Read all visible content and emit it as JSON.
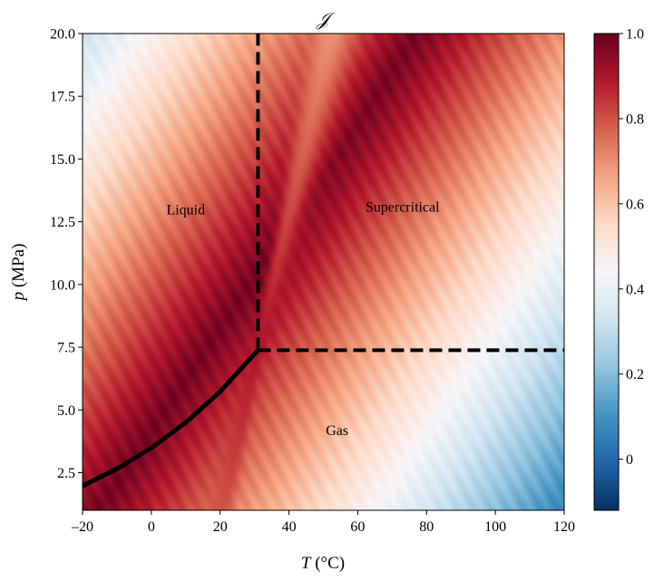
{
  "chart_data": {
    "type": "heatmap",
    "title": "𝒥",
    "xlabel": {
      "symbol": "T",
      "unit": " (°C)"
    },
    "ylabel": {
      "symbol": "p",
      "unit": " (MPa)"
    },
    "xlim": [
      -20,
      120
    ],
    "ylim": [
      1.0,
      20.0
    ],
    "x_ticks": [
      -20,
      0,
      20,
      40,
      60,
      80,
      100,
      120
    ],
    "x_tick_labels": [
      "–20",
      "0",
      "20",
      "40",
      "60",
      "80",
      "100",
      "120"
    ],
    "y_ticks": [
      2.5,
      5.0,
      7.5,
      10.0,
      12.5,
      15.0,
      17.5,
      20.0
    ],
    "y_tick_labels": [
      "2.5",
      "5.0",
      "7.5",
      "10.0",
      "12.5",
      "15.0",
      "17.5",
      "20.0"
    ],
    "colorbar": {
      "range": [
        -0.12,
        1.0
      ],
      "ticks": [
        0,
        0.2,
        0.4,
        0.6,
        0.8,
        1.0
      ],
      "tick_labels": [
        "0",
        "0.2",
        "0.4",
        "0.6",
        "0.8",
        "1.0"
      ],
      "colormap": "RdBu_r",
      "colors": [
        "#053061",
        "#2166ac",
        "#4393c3",
        "#92c5de",
        "#d1e5f0",
        "#f7f7f7",
        "#fddbc7",
        "#f4a582",
        "#d6604d",
        "#b2182b",
        "#67001f"
      ]
    },
    "critical_point": {
      "T": 31.0,
      "p": 7.38
    },
    "saturation_curve": [
      {
        "T": -20,
        "p": 1.97
      },
      {
        "T": -10,
        "p": 2.65
      },
      {
        "T": 0,
        "p": 3.49
      },
      {
        "T": 10,
        "p": 4.5
      },
      {
        "T": 20,
        "p": 5.73
      },
      {
        "T": 31,
        "p": 7.38
      }
    ],
    "boundaries": [
      {
        "type": "dashed",
        "points": [
          {
            "T": 31.0,
            "p": 7.38
          },
          {
            "T": 31.0,
            "p": 20.0
          }
        ]
      },
      {
        "type": "dashed",
        "points": [
          {
            "T": 31.0,
            "p": 7.38
          },
          {
            "T": 120,
            "p": 7.38
          }
        ]
      }
    ],
    "annotations": [
      {
        "text": "Liquid",
        "T": 10,
        "p": 12.8
      },
      {
        "text": "Supercritical",
        "T": 73,
        "p": 12.9
      },
      {
        "text": "Gas",
        "T": 54,
        "p": 4.0
      }
    ]
  }
}
